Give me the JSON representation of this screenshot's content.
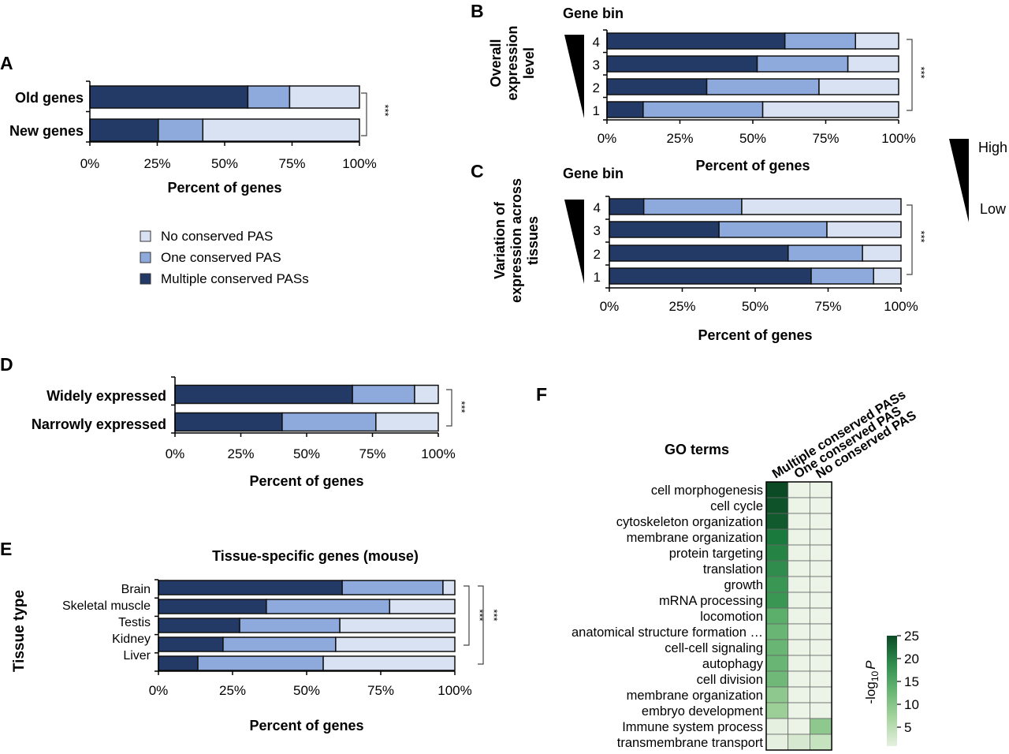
{
  "colors": {
    "multiple": "#233a66",
    "one": "#8ea9db",
    "none": "#d9e2f3",
    "outline": "#111111",
    "heat_low": "#f4f7f0",
    "heat_high": "#0b4a25"
  },
  "legend": {
    "items": [
      {
        "key": "none",
        "label": "No conserved PAS"
      },
      {
        "key": "one",
        "label": "One conserved PAS"
      },
      {
        "key": "multiple",
        "label": "Multiple conserved PASs"
      }
    ]
  },
  "gradient_legend": {
    "high": "High",
    "low": "Low"
  },
  "chart_data": [
    {
      "panel": "A",
      "type": "bar",
      "stacked": true,
      "orientation": "horizontal",
      "categories": [
        "Old genes",
        "New genes"
      ],
      "series": [
        {
          "name": "Multiple conserved PASs",
          "key": "multiple",
          "values": [
            58.6,
            25.4
          ]
        },
        {
          "name": "One conserved PAS",
          "key": "one",
          "values": [
            15.5,
            16.5
          ]
        },
        {
          "name": "No conserved PAS",
          "key": "none",
          "values": [
            25.9,
            58.1
          ]
        }
      ],
      "xlabel": "Percent of genes",
      "xticks": [
        "0%",
        "25%",
        "50%",
        "75%",
        "100%"
      ],
      "xlim": [
        0,
        100
      ],
      "significance": "***"
    },
    {
      "panel": "B",
      "type": "bar",
      "stacked": true,
      "orientation": "horizontal",
      "title": "Gene bin",
      "ylabel": "Overall expression level",
      "categories": [
        "4",
        "3",
        "2",
        "1"
      ],
      "series": [
        {
          "name": "Multiple conserved PASs",
          "key": "multiple",
          "values": [
            61.0,
            51.5,
            34.2,
            12.4
          ]
        },
        {
          "name": "One conserved PAS",
          "key": "one",
          "values": [
            24.2,
            31.1,
            38.5,
            41.0
          ]
        },
        {
          "name": "No conserved PAS",
          "key": "none",
          "values": [
            14.8,
            17.4,
            27.3,
            46.6
          ]
        }
      ],
      "xlabel": "Percent of genes",
      "xticks": [
        "0%",
        "25%",
        "50%",
        "75%",
        "100%"
      ],
      "xlim": [
        0,
        100
      ],
      "significance": "***"
    },
    {
      "panel": "C",
      "type": "bar",
      "stacked": true,
      "orientation": "horizontal",
      "title": "Gene bin",
      "ylabel": "Variation of expression across tissues",
      "categories": [
        "4",
        "3",
        "2",
        "1"
      ],
      "series": [
        {
          "name": "Multiple conserved PASs",
          "key": "multiple",
          "values": [
            11.8,
            37.6,
            61.3,
            69.2
          ]
        },
        {
          "name": "One conserved PAS",
          "key": "one",
          "values": [
            33.6,
            37.0,
            25.5,
            21.4
          ]
        },
        {
          "name": "No conserved PAS",
          "key": "none",
          "values": [
            54.6,
            25.4,
            13.2,
            9.4
          ]
        }
      ],
      "xlabel": "Percent of genes",
      "xticks": [
        "0%",
        "25%",
        "50%",
        "75%",
        "100%"
      ],
      "xlim": [
        0,
        100
      ],
      "significance": "***"
    },
    {
      "panel": "D",
      "type": "bar",
      "stacked": true,
      "orientation": "horizontal",
      "categories": [
        "Widely expressed",
        "Narrowly expressed"
      ],
      "series": [
        {
          "name": "Multiple conserved PASs",
          "key": "multiple",
          "values": [
            67.4,
            40.7
          ]
        },
        {
          "name": "One conserved PAS",
          "key": "one",
          "values": [
            23.6,
            35.6
          ]
        },
        {
          "name": "No conserved PAS",
          "key": "none",
          "values": [
            9.0,
            23.7
          ]
        }
      ],
      "xlabel": "Percent of genes",
      "xticks": [
        "0%",
        "25%",
        "50%",
        "75%",
        "100%"
      ],
      "xlim": [
        0,
        100
      ],
      "significance": "***"
    },
    {
      "panel": "E",
      "type": "bar",
      "stacked": true,
      "orientation": "horizontal",
      "title": "Tissue-specific genes (mouse)",
      "ylabel": "Tissue type",
      "categories": [
        "Brain",
        "Skeletal muscle",
        "Testis",
        "Kidney",
        "Liver"
      ],
      "series": [
        {
          "name": "Multiple conserved PASs",
          "key": "multiple",
          "values": [
            62.0,
            36.4,
            27.4,
            21.8,
            13.3
          ]
        },
        {
          "name": "One conserved PAS",
          "key": "one",
          "values": [
            34.0,
            41.6,
            33.8,
            38.0,
            42.3
          ]
        },
        {
          "name": "No conserved PAS",
          "key": "none",
          "values": [
            4.0,
            22.0,
            38.8,
            40.2,
            44.4
          ]
        }
      ],
      "xlabel": "Percent of genes",
      "xticks": [
        "0%",
        "25%",
        "50%",
        "75%",
        "100%"
      ],
      "xlim": [
        0,
        100
      ],
      "significance": [
        "***",
        "***"
      ]
    },
    {
      "panel": "F",
      "type": "heatmap",
      "title": "GO terms",
      "columns": [
        "Multiple conserved PASs",
        "One conserved PAS",
        "No conserved PAS"
      ],
      "rows": [
        "cell morphogenesis",
        "cell cycle",
        "cytoskeleton organization",
        "membrane organization",
        "protein targeting",
        "translation",
        "growth",
        "mRNA processing",
        "locomotion",
        "anatomical structure formation …",
        "cell-cell signaling",
        "autophagy",
        "cell division",
        "membrane organization",
        "embryo development",
        "Immune system process",
        "transmembrane transport"
      ],
      "values": [
        [
          25,
          1,
          1
        ],
        [
          24.5,
          1,
          1
        ],
        [
          24,
          1,
          1
        ],
        [
          22,
          1,
          1
        ],
        [
          21,
          1,
          1
        ],
        [
          20,
          1,
          1
        ],
        [
          19,
          1,
          1
        ],
        [
          19,
          1,
          1
        ],
        [
          16,
          1,
          1
        ],
        [
          15,
          1,
          1
        ],
        [
          15,
          1,
          1
        ],
        [
          15,
          1,
          1
        ],
        [
          14.5,
          1,
          1
        ],
        [
          12,
          1,
          1
        ],
        [
          11,
          1,
          1
        ],
        [
          2,
          1,
          12
        ],
        [
          2,
          4,
          6
        ]
      ],
      "colorbar": {
        "label": "-log",
        "label_sub": "10",
        "label_p": "P",
        "ticks": [
          "25",
          "20",
          "15",
          "10",
          "5"
        ],
        "range": [
          2,
          25
        ]
      }
    }
  ]
}
